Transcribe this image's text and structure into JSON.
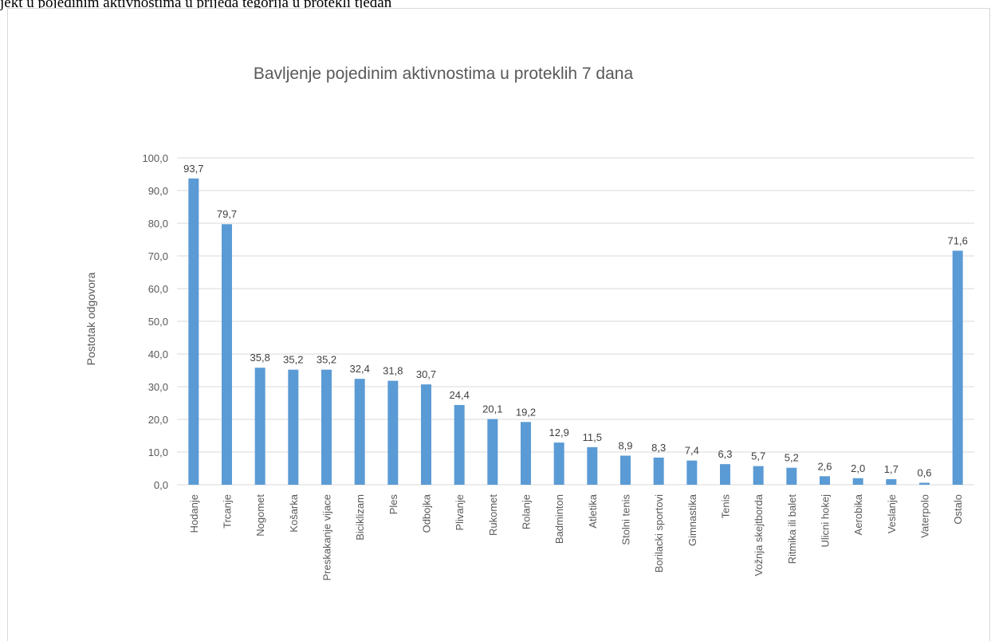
{
  "top_text": "jekt u pojedinim aktivnostima u prijeđa tegorija u protekli tjedan",
  "colors": {
    "bar": "#5b9bd5",
    "grid": "#d9d9d9",
    "frame": "#d9d9d9"
  },
  "chart_data": {
    "type": "bar",
    "title": "Bavljenje pojedinim aktivnostima u proteklih 7 dana",
    "xlabel": "",
    "ylabel": "Postotak odgovora",
    "ylim": [
      0,
      100
    ],
    "yticks": [
      "0,0",
      "10,0",
      "20,0",
      "30,0",
      "40,0",
      "50,0",
      "60,0",
      "70,0",
      "80,0",
      "90,0",
      "100,0"
    ],
    "grid": true,
    "legend": "none",
    "categories": [
      "Hodanje",
      "Trcanje",
      "Nogomet",
      "Košarka",
      "Preskakanje vijace",
      "Biciklizam",
      "Ples",
      "Odbojka",
      "Plivanje",
      "Rukomet",
      "Rolanje",
      "Badminton",
      "Atletika",
      "Stolni tenis",
      "Borilacki sportovi",
      "Gimnastika",
      "Tenis",
      "Vožnja skejtborda",
      "Ritmika ili balet",
      "Ulicni hokej",
      "Aerobika",
      "Veslanje",
      "Vaterpolo",
      "Ostalo"
    ],
    "values": [
      93.7,
      79.7,
      35.8,
      35.2,
      35.2,
      32.4,
      31.8,
      30.7,
      24.4,
      20.1,
      19.2,
      12.9,
      11.5,
      8.9,
      8.3,
      7.4,
      6.3,
      5.7,
      5.2,
      2.6,
      2.0,
      1.7,
      0.6,
      71.6
    ],
    "value_labels": [
      "93,7",
      "79,7",
      "35,8",
      "35,2",
      "35,2",
      "32,4",
      "31,8",
      "30,7",
      "24,4",
      "20,1",
      "19,2",
      "12,9",
      "11,5",
      "8,9",
      "8,3",
      "7,4",
      "6,3",
      "5,7",
      "5,2",
      "2,6",
      "2,0",
      "1,7",
      "0,6",
      "71,6"
    ]
  }
}
